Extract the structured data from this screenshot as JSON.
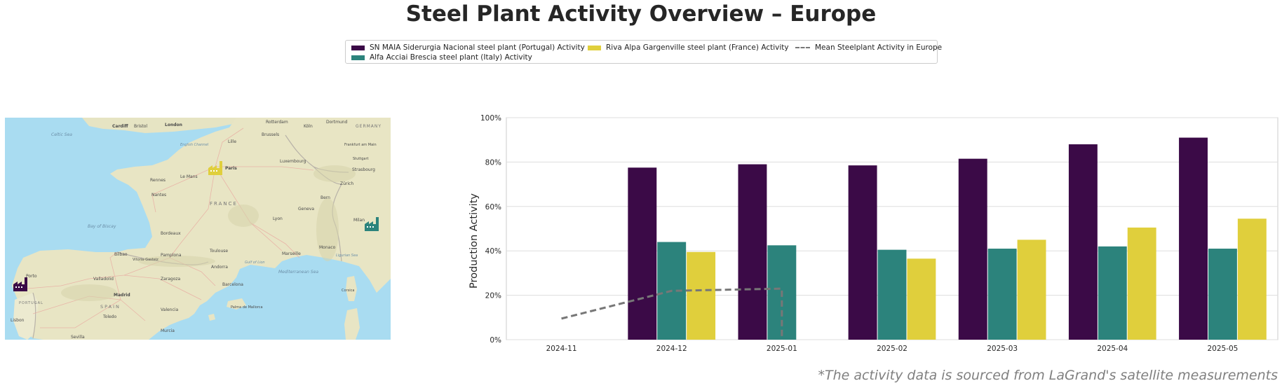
{
  "title": "Steel Plant Activity Overview – Europe",
  "footnote": "*The activity data is sourced from LaGrand's satellite measurements",
  "legend": {
    "items": [
      {
        "label": "SN MAIA Siderurgia Nacional steel plant (Portugal) Activity",
        "color": "#3b0a47",
        "kind": "bar"
      },
      {
        "label": "Alfa Acciai Brescia steel plant (Italy) Activity",
        "color": "#2c837c",
        "kind": "bar"
      },
      {
        "label": "Riva Alpa Gargenville steel plant (France) Activity",
        "color": "#e0cf3c",
        "kind": "bar"
      },
      {
        "label": "Mean Steelplant Activity in Europe",
        "color": "#777777",
        "kind": "line"
      }
    ]
  },
  "map": {
    "labels": [
      {
        "text": "Cardiff"
      },
      {
        "text": "Bristol"
      },
      {
        "text": "London"
      },
      {
        "text": "Celtic Sea"
      },
      {
        "text": "English Channel"
      },
      {
        "text": "Paris"
      },
      {
        "text": "Rennes"
      },
      {
        "text": "Nantes"
      },
      {
        "text": "FRANCE"
      },
      {
        "text": "Bordeaux"
      },
      {
        "text": "Lyon"
      },
      {
        "text": "Bay of Biscay"
      },
      {
        "text": "Toulouse"
      },
      {
        "text": "Marseille"
      },
      {
        "text": "Monaco"
      },
      {
        "text": "Milan"
      },
      {
        "text": "Bilbao"
      },
      {
        "text": "Porto"
      },
      {
        "text": "PORTUGAL"
      },
      {
        "text": "SPAIN"
      },
      {
        "text": "Madrid"
      },
      {
        "text": "Valladolid"
      },
      {
        "text": "Zaragoza"
      },
      {
        "text": "Barcelona"
      },
      {
        "text": "Andorra"
      },
      {
        "text": "Lisbon"
      },
      {
        "text": "Valencia"
      },
      {
        "text": "Mediterranean Sea"
      },
      {
        "text": "Palma de Mallorca"
      },
      {
        "text": "Luxembourg"
      },
      {
        "text": "Brussels"
      },
      {
        "text": "Strasbourg"
      },
      {
        "text": "GERMANY"
      },
      {
        "text": "Frankfurt am Main"
      },
      {
        "text": "Stuttgart"
      },
      {
        "text": "Bern"
      },
      {
        "text": "Geneva"
      },
      {
        "text": "Köln"
      },
      {
        "text": "Dortmund"
      },
      {
        "text": "Lille"
      },
      {
        "text": "Gulf of Lion"
      },
      {
        "text": "Ligurian Sea"
      },
      {
        "text": "Corsica"
      },
      {
        "text": "Murcia"
      },
      {
        "text": "Toledo"
      },
      {
        "text": "Sevilla"
      },
      {
        "text": "Vitoria-Gasteiz"
      },
      {
        "text": "Pamplona"
      },
      {
        "text": "Le Mans"
      },
      {
        "text": "Rotterdam"
      },
      {
        "text": "Zürich"
      }
    ],
    "markers": [
      {
        "name": "portugal-plant",
        "color": "#3b0a47"
      },
      {
        "name": "france-plant",
        "color": "#e0cf3c"
      },
      {
        "name": "italy-plant",
        "color": "#2c837c"
      }
    ]
  },
  "chart_data": {
    "type": "bar",
    "title": "",
    "xlabel": "",
    "ylabel": "Production Activity",
    "ylim": [
      0,
      100
    ],
    "y_ticks": [
      0,
      20,
      40,
      60,
      80,
      100
    ],
    "y_tick_labels": [
      "0%",
      "20%",
      "40%",
      "60%",
      "80%",
      "100%"
    ],
    "grid": "horizontal",
    "legend_position": "top-center",
    "categories": [
      "2024-11",
      "2024-12",
      "2025-01",
      "2025-02",
      "2025-03",
      "2025-04",
      "2025-05"
    ],
    "series": [
      {
        "name": "SN MAIA Siderurgia Nacional steel plant (Portugal) Activity",
        "type": "bar",
        "color": "#3b0a47",
        "values": [
          null,
          77.5,
          79,
          78.5,
          81.5,
          88,
          91
        ]
      },
      {
        "name": "Alfa Acciai Brescia steel plant (Italy) Activity",
        "type": "bar",
        "color": "#2c837c",
        "values": [
          null,
          44,
          42.5,
          40.5,
          41,
          42,
          41
        ]
      },
      {
        "name": "Riva Alpa Gargenville steel plant (France) Activity",
        "type": "bar",
        "color": "#e0cf3c",
        "values": [
          null,
          39.5,
          null,
          36.5,
          45,
          50.5,
          54.5
        ]
      },
      {
        "name": "Mean Steelplant Activity in Europe",
        "type": "line",
        "style": "dashed",
        "color": "#777777",
        "points": [
          {
            "x": "2024-11",
            "y": 9.5
          },
          {
            "x": "2024-12",
            "y": 22
          },
          {
            "x": "2025-01",
            "y": 23
          },
          {
            "x": "2025-01",
            "y": 0
          }
        ]
      }
    ]
  }
}
